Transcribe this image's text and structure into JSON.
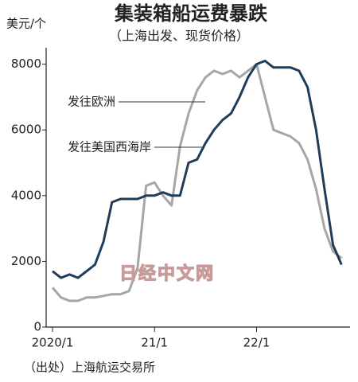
{
  "chart_data": {
    "type": "line",
    "title": "集装箱船运费暴跌",
    "subtitle": "（上海出发、现货价格）",
    "y_label": "美元/个",
    "source": "（出处）上海航运交易所",
    "watermark": "日经中文网",
    "x": [
      0,
      1,
      2,
      3,
      4,
      5,
      6,
      7,
      8,
      9,
      10,
      11,
      12,
      13,
      14,
      15,
      16,
      17,
      18,
      19,
      20,
      21,
      22,
      23,
      24,
      25,
      26,
      27,
      28,
      29,
      30,
      31,
      32,
      33,
      34
    ],
    "xlim": [
      -0.75,
      35
    ],
    "xticks": [
      {
        "value": 0,
        "label": "2020/1"
      },
      {
        "value": 12,
        "label": "21/1"
      },
      {
        "value": 24,
        "label": "22/1"
      }
    ],
    "ylim": [
      0,
      8500
    ],
    "yticks": [
      0,
      2000,
      4000,
      6000,
      8000
    ],
    "series": [
      {
        "name": "发往欧洲",
        "color": "#a6a6a6",
        "values": [
          1200,
          900,
          800,
          800,
          900,
          900,
          950,
          1000,
          1000,
          1100,
          1800,
          4300,
          4400,
          4000,
          3700,
          5500,
          6500,
          7200,
          7600,
          7800,
          7700,
          7800,
          7600,
          7800,
          8000,
          7000,
          6000,
          5900,
          5800,
          5600,
          5100,
          4200,
          3000,
          2300,
          2100
        ]
      },
      {
        "name": "发往美国西海岸",
        "color": "#1f3d58",
        "values": [
          1700,
          1500,
          1600,
          1500,
          1700,
          1900,
          2600,
          3800,
          3900,
          3900,
          3900,
          4000,
          4000,
          4100,
          4000,
          4000,
          5000,
          5100,
          5600,
          6000,
          6300,
          6500,
          7000,
          7600,
          8000,
          8100,
          7900,
          7900,
          7900,
          7800,
          7300,
          6000,
          4200,
          2500,
          1900
        ]
      }
    ]
  }
}
